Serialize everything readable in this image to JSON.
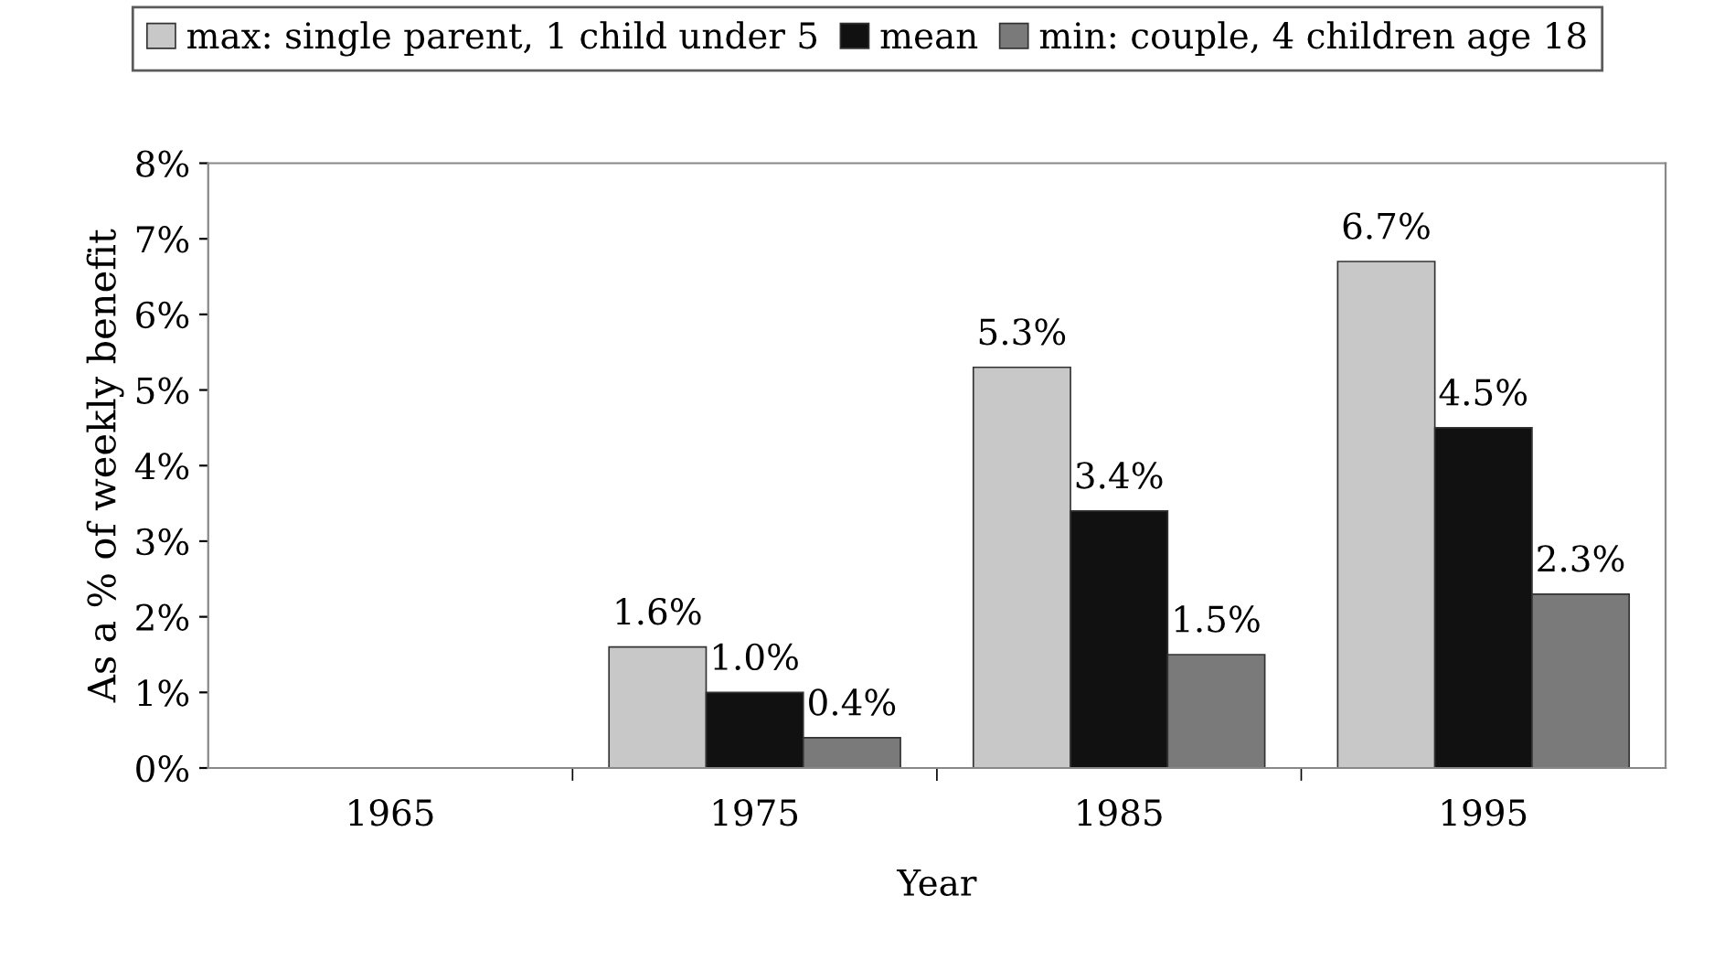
{
  "chart_data": {
    "type": "bar",
    "xlabel": "Year",
    "ylabel": "As a % of weekly benefit",
    "categories": [
      "1965",
      "1975",
      "1985",
      "1995"
    ],
    "series": [
      {
        "name": "max: single parent, 1 child under 5",
        "color": "#c8c8c8",
        "values": [
          null,
          1.6,
          5.3,
          6.7
        ],
        "value_labels": [
          null,
          "1.6%",
          "5.3%",
          "6.7%"
        ]
      },
      {
        "name": "mean",
        "color": "#111111",
        "values": [
          null,
          1.0,
          3.4,
          4.5
        ],
        "value_labels": [
          null,
          "1.0%",
          "3.4%",
          "4.5%"
        ]
      },
      {
        "name": "min: couple, 4 children age 18",
        "color": "#7a7a7a",
        "values": [
          null,
          0.4,
          1.5,
          2.3
        ],
        "value_labels": [
          null,
          "0.4%",
          "1.5%",
          "2.3%"
        ]
      }
    ],
    "ylim": [
      0,
      8
    ],
    "yticks": [
      {
        "value": 0,
        "label": "0%"
      },
      {
        "value": 1,
        "label": "1%"
      },
      {
        "value": 2,
        "label": "2%"
      },
      {
        "value": 3,
        "label": "3%"
      },
      {
        "value": 4,
        "label": "4%"
      },
      {
        "value": 5,
        "label": "5%"
      },
      {
        "value": 6,
        "label": "6%"
      },
      {
        "value": 7,
        "label": "7%"
      },
      {
        "value": 8,
        "label": "8%"
      }
    ],
    "grid": false,
    "legend": "top"
  }
}
